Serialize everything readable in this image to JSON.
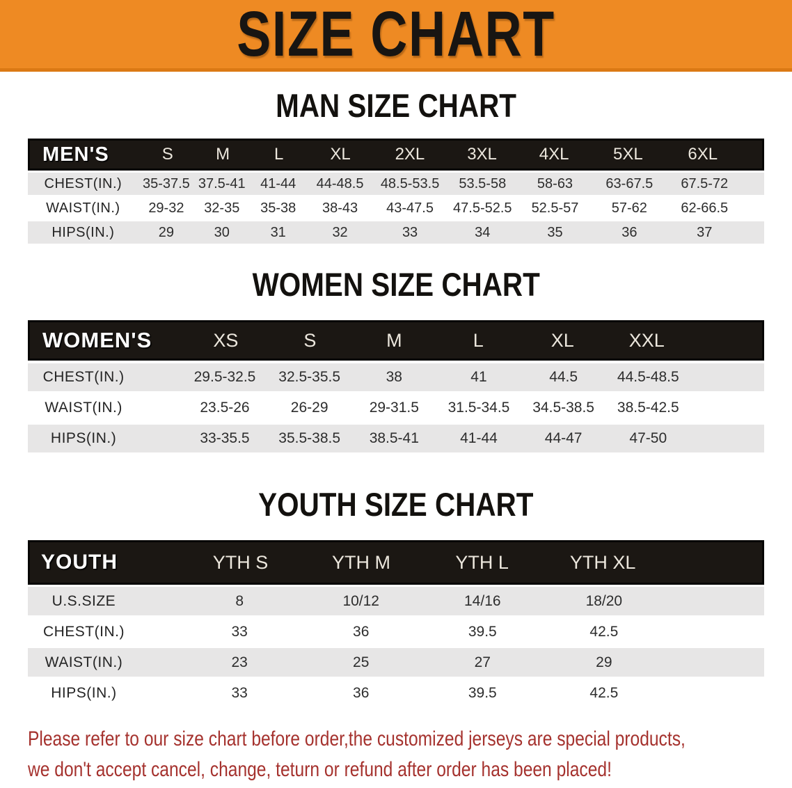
{
  "banner": {
    "title": "SIZE CHART",
    "bg_color": "#ee8a23"
  },
  "sections": {
    "men": {
      "title": "MAN SIZE CHART",
      "table": {
        "corner": "MEN'S",
        "sizes": [
          "S",
          "M",
          "L",
          "XL",
          "2XL",
          "3XL",
          "4XL",
          "5XL",
          "6XL"
        ],
        "rows": [
          {
            "label": "CHEST(IN.)",
            "values": [
              "35-37.5",
              "37.5-41",
              "41-44",
              "44-48.5",
              "48.5-53.5",
              "53.5-58",
              "58-63",
              "63-67.5",
              "67.5-72"
            ]
          },
          {
            "label": "WAIST(IN.)",
            "values": [
              "29-32",
              "32-35",
              "35-38",
              "38-43",
              "43-47.5",
              "47.5-52.5",
              "52.5-57",
              "57-62",
              "62-66.5"
            ]
          },
          {
            "label": "HIPS(IN.)",
            "values": [
              "29",
              "30",
              "31",
              "32",
              "33",
              "34",
              "35",
              "36",
              "37"
            ]
          }
        ]
      }
    },
    "women": {
      "title": "WOMEN SIZE CHART",
      "table": {
        "corner": "WOMEN'S",
        "sizes": [
          "XS",
          "S",
          "M",
          "L",
          "XL",
          "XXL"
        ],
        "rows": [
          {
            "label": "CHEST(IN.)",
            "values": [
              "29.5-32.5",
              "32.5-35.5",
              "38",
              "41",
              "44.5",
              "44.5-48.5"
            ]
          },
          {
            "label": "WAIST(IN.)",
            "values": [
              "23.5-26",
              "26-29",
              "29-31.5",
              "31.5-34.5",
              "34.5-38.5",
              "38.5-42.5"
            ]
          },
          {
            "label": "HIPS(IN.)",
            "values": [
              "33-35.5",
              "35.5-38.5",
              "38.5-41",
              "41-44",
              "44-47",
              "47-50"
            ]
          }
        ]
      }
    },
    "youth": {
      "title": "YOUTH SIZE CHART",
      "table": {
        "corner": "YOUTH",
        "sizes": [
          "YTH S",
          "YTH M",
          "YTH L",
          "YTH XL"
        ],
        "rows": [
          {
            "label": "U.S.SIZE",
            "values": [
              "8",
              "10/12",
              "14/16",
              "18/20"
            ]
          },
          {
            "label": "CHEST(IN.)",
            "values": [
              "33",
              "36",
              "39.5",
              "42.5"
            ]
          },
          {
            "label": "WAIST(IN.)",
            "values": [
              "23",
              "25",
              "27",
              "29"
            ]
          },
          {
            "label": "HIPS(IN.)",
            "values": [
              "33",
              "36",
              "39.5",
              "42.5"
            ]
          }
        ]
      }
    }
  },
  "footnote": {
    "line1": "Please refer to our size chart before order,the customized jerseys are special products,",
    "line2": "we don't accept cancel, change, teturn or refund after order has been placed!",
    "color": "#a5322e"
  }
}
